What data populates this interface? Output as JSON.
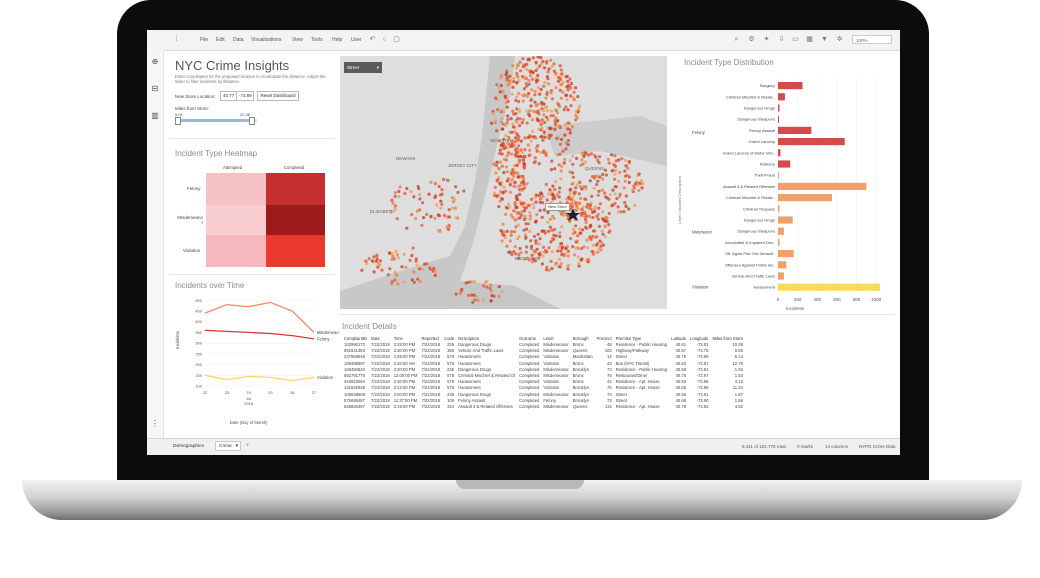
{
  "menu": [
    "File",
    "Edit",
    "Data",
    "Visualizations",
    "View",
    "Tools",
    "Help",
    "User"
  ],
  "toolbar_right": {
    "zoom_label": "100%"
  },
  "header": {
    "title": "NYC Crime Insights",
    "subtitle": "Enter coordinates for the proposed location to recalculate the distance. Adjust the slider to filter incidents by distance."
  },
  "controls": {
    "location_label": "New Store Location:",
    "lat_value": "40.77",
    "lon_value": "-73.89",
    "reset_label": "Reset Dashboard",
    "miles_label": "Miles from Store:",
    "slider_min": "0.01",
    "slider_max": "22.38"
  },
  "map": {
    "dropdown_label": "Street",
    "store_label": "New Store",
    "place_labels": [
      "NEWARK",
      "JERSEY CITY",
      "ELIZABETH",
      "NEW YORK",
      "QUEENS",
      "BROOKLYN"
    ]
  },
  "heatmap": {
    "title": "Incident Type Heatmap",
    "columns": [
      "Attempted",
      "Completed"
    ],
    "rows": [
      "Felony",
      "Misdemeanor",
      "Violation"
    ],
    "colors": [
      [
        "#f6c1c3",
        "#c62f2f"
      ],
      [
        "#f8cdd0",
        "#9e1b1b"
      ],
      [
        "#f6b8bc",
        "#e8392c"
      ]
    ]
  },
  "timeline": {
    "title": "Incidents over Time",
    "ylabel": "Incidents",
    "xlabel": "Date (Day of Month)",
    "x_ticks": [
      "22",
      "23",
      "24",
      "25",
      "26",
      "27"
    ],
    "x_month": "Jul",
    "x_year": "2018",
    "y_ticks": [
      "500",
      "450",
      "400",
      "350",
      "300",
      "250",
      "200",
      "150",
      "100"
    ],
    "legend": [
      "Misdemeanor",
      "Felony",
      "Violation"
    ]
  },
  "distribution": {
    "title": "Incident Type Distribution",
    "ylabel": "Level / Incident Description",
    "xlabel": "Incidents",
    "x_ticks": [
      "0",
      "200",
      "400",
      "600",
      "800",
      "1000"
    ],
    "groups": [
      "Felony",
      "Misdemeanor",
      "Violation"
    ]
  },
  "table": {
    "title": "Incident Details",
    "columns": [
      "ComplaintID",
      "Date",
      "Time",
      "Reported",
      "Code",
      "Description",
      "Outcome",
      "Level",
      "Borough",
      "Precinct",
      "Premise Type",
      "Latitude",
      "Longitude",
      "Miles from Store"
    ],
    "rows": [
      [
        "102990172",
        "7/22/2018",
        "2:28:00 PM",
        "7/22/2018",
        "235",
        "Dangerous Drugs",
        "Completed",
        "Misdemeanor",
        "Bronx",
        "48",
        "Residence - Public Housing",
        "40.81",
        "-73.91",
        "10.08"
      ],
      [
        "891541353",
        "7/22/2018",
        "2:30:00 PM",
        "7/22/2018",
        "359",
        "Vehicle And Traffic Laws",
        "Completed",
        "Misdemeanor",
        "Queens",
        "103",
        "Highway/Parkway",
        "40.67",
        "-73.75",
        "6.56"
      ],
      [
        "237868646",
        "7/22/2018",
        "1:59:00 PM",
        "7/22/2018",
        "578",
        "Harassment",
        "Completed",
        "Violation",
        "Manhattan",
        "14",
        "Street",
        "40.75",
        "-73.99",
        "5.14"
      ],
      [
        "199488597",
        "7/22/2018",
        "2:20:00 AM",
        "7/22/2018",
        "578",
        "Harassment",
        "Completed",
        "Violation",
        "Bronx",
        "43",
        "Bus (NYC Transit)",
        "40.83",
        "-73.87",
        "12.79"
      ],
      [
        "108484640",
        "7/22/2018",
        "2:30:00 PM",
        "7/22/2018",
        "235",
        "Dangerous Drugs",
        "Completed",
        "Misdemeanor",
        "Brooklyn",
        "73",
        "Residence - Public Housing",
        "40.68",
        "-73.91",
        "1.02"
      ],
      [
        "582791775",
        "7/22/2018",
        "12:00:00 PM",
        "7/22/2018",
        "578",
        "Criminal Mischief & Related Of",
        "Completed",
        "Misdemeanor",
        "Bronx",
        "76",
        "Restaurant/Diner",
        "40.75",
        "-73.97",
        "1.53"
      ],
      [
        "343843094",
        "7/22/2018",
        "2:30:00 PM",
        "7/22/2018",
        "578",
        "Harassment",
        "Completed",
        "Violation",
        "Bronx",
        "44",
        "Residence - Apt. House",
        "40.63",
        "-73.96",
        "4.12"
      ],
      [
        "131845939",
        "7/22/2018",
        "2:12:00 PM",
        "7/22/2018",
        "578",
        "Harassment",
        "Completed",
        "Violation",
        "Brooklyn",
        "75",
        "Residence - Apt. House",
        "40.65",
        "-73.96",
        "11.34"
      ],
      [
        "105848608",
        "7/22/2018",
        "2:00:00 PM",
        "7/22/2018",
        "235",
        "Dangerous Drugs",
        "Completed",
        "Misdemeanor",
        "Brooklyn",
        "73",
        "Street",
        "40.66",
        "-73.91",
        "1.87"
      ],
      [
        "575686487",
        "7/22/2018",
        "11:37:00 PM",
        "7/22/2018",
        "106",
        "Felony Assault",
        "Completed",
        "Felony",
        "Brooklyn",
        "73",
        "Street",
        "40.68",
        "-73.90",
        "1.66"
      ],
      [
        "545825497",
        "7/22/2018",
        "2:19:00 PM",
        "7/22/2018",
        "344",
        "Assault 3 & Related Offenses",
        "Completed",
        "Misdemeanor",
        "Queens",
        "114",
        "Residence - Apt. House",
        "40.76",
        "-73.92",
        "4.52"
      ]
    ]
  },
  "status": {
    "tabs": [
      "Demographics",
      "Crime"
    ],
    "rows_info": "5,411 of 102,776 rows",
    "marks_info": "0 marks",
    "columns_info": "14 columns",
    "source_info": "NYPD Crime Data"
  },
  "chart_data": [
    {
      "type": "bar",
      "title": "Incident Type Distribution",
      "xlabel": "Incidents",
      "ylabel": "Level / Incident Description",
      "xlim": [
        0,
        1100
      ],
      "categories": [
        "Burglary",
        "Criminal Mischief & Relate..",
        "Dangerous Drugs",
        "Dangerous Weapons",
        "Felony Assault",
        "Grand Larceny",
        "Grand Larceny of Motor Veh..",
        "Robbery",
        "Theft-Fraud",
        "Assault 3 & Related Offenses",
        "Criminal Mischief & Relate..",
        "Criminal Trespass",
        "Dangerous Drugs",
        "Dangerous Weapons",
        "Intoxicated & Impaired Driv..",
        "Off. Agnst Pub Ord Sensblt..",
        "Offenses Against Public Ad..",
        "Vehicle And Traffic Laws",
        "Harassment"
      ],
      "groups": [
        "Felony",
        "Felony",
        "Felony",
        "Felony",
        "Felony",
        "Felony",
        "Felony",
        "Felony",
        "Felony",
        "Misdemeanor",
        "Misdemeanor",
        "Misdemeanor",
        "Misdemeanor",
        "Misdemeanor",
        "Misdemeanor",
        "Misdemeanor",
        "Misdemeanor",
        "Misdemeanor",
        "Violation"
      ],
      "values": [
        250,
        70,
        15,
        10,
        340,
        680,
        25,
        125,
        5,
        900,
        550,
        15,
        150,
        60,
        15,
        160,
        85,
        60,
        1040
      ],
      "colors": [
        "#d54b4b",
        "#d54b4b",
        "#d54b4b",
        "#d54b4b",
        "#d54b4b",
        "#d54b4b",
        "#d54b4b",
        "#d54b4b",
        "#d54b4b",
        "#f0a06a",
        "#f0a06a",
        "#f0a06a",
        "#f0a06a",
        "#f0a06a",
        "#f0a06a",
        "#f0a06a",
        "#f0a06a",
        "#f0a06a",
        "#f5dc58"
      ]
    },
    {
      "type": "line",
      "title": "Incidents over Time",
      "xlabel": "Date (Day of Month)",
      "ylabel": "Incidents",
      "x": [
        "22",
        "23",
        "24",
        "25",
        "26",
        "27"
      ],
      "ylim": [
        100,
        520
      ],
      "series": [
        {
          "name": "Misdemeanor",
          "color": "#f08a6e",
          "values": [
            440,
            480,
            470,
            490,
            450,
            350
          ]
        },
        {
          "name": "Felony",
          "color": "#d83a3a",
          "values": [
            360,
            355,
            350,
            345,
            335,
            320
          ]
        },
        {
          "name": "Violation",
          "color": "#f5d766",
          "values": [
            150,
            130,
            145,
            140,
            125,
            140
          ]
        }
      ]
    }
  ]
}
